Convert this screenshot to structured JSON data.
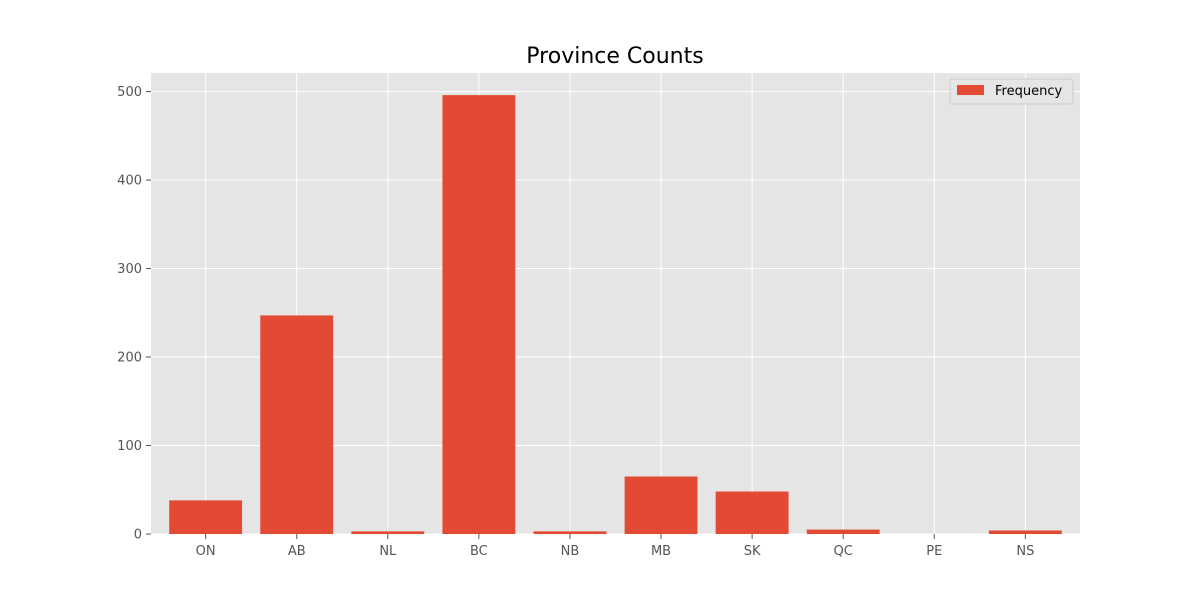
{
  "chart_data": {
    "type": "bar",
    "title": "Province Counts",
    "xlabel": "",
    "ylabel": "",
    "categories": [
      "ON",
      "AB",
      "NL",
      "BC",
      "NB",
      "MB",
      "SK",
      "QC",
      "PE",
      "NS"
    ],
    "series": [
      {
        "name": "Frequency",
        "values": [
          38,
          247,
          3,
          496,
          3,
          65,
          48,
          5,
          0,
          4
        ],
        "color": "#e24a33"
      }
    ],
    "ylim": [
      0,
      521
    ],
    "yticks": [
      0,
      100,
      200,
      300,
      400,
      500
    ],
    "grid": true,
    "legend_position": "top-right",
    "colors": {
      "plot_background": "#e5e5e5",
      "grid": "#ffffff",
      "bar": "#e24a33"
    }
  }
}
